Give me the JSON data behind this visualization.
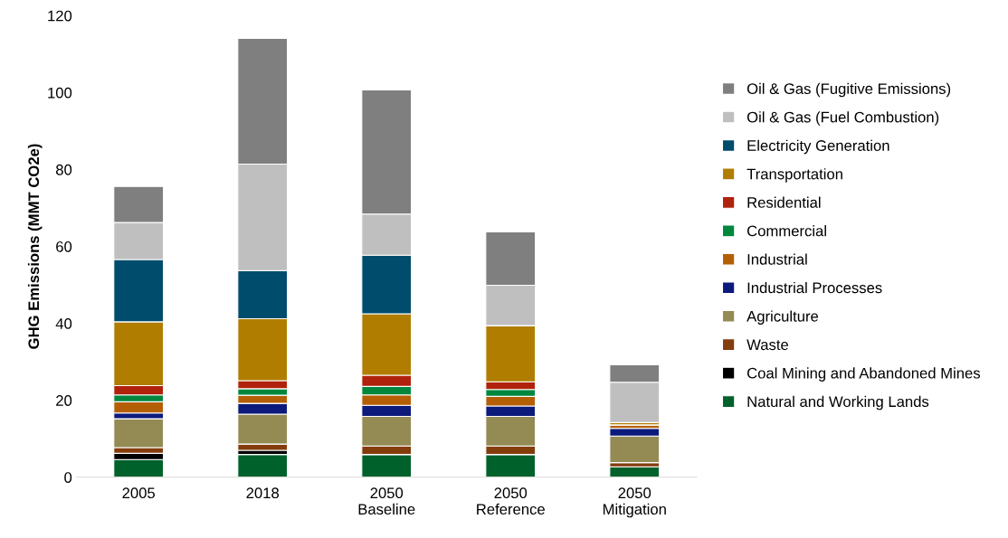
{
  "chart_data": {
    "type": "bar",
    "stacked": true,
    "ylabel": "GHG Emissions (MMT CO2e)",
    "categories": [
      "2005",
      "2018",
      "2050\nBaseline",
      "2050\nReference",
      "2050\nMitigation"
    ],
    "ylim": [
      0,
      120
    ],
    "yticks": [
      0,
      20,
      40,
      60,
      80,
      100,
      120
    ],
    "grid": false,
    "legend": "right",
    "series": [
      {
        "name": "Natural and Working Lands",
        "color": "#00612b",
        "values": [
          4.6,
          5.9,
          5.9,
          5.9,
          2.7
        ]
      },
      {
        "name": "Coal Mining and Abandoned Mines",
        "color": "#000000",
        "values": [
          1.6,
          1.1,
          0,
          0,
          0
        ]
      },
      {
        "name": "Waste",
        "color": "#843c0c",
        "values": [
          1.5,
          1.6,
          2.2,
          2.2,
          1.1
        ]
      },
      {
        "name": "Agriculture",
        "color": "#948a54",
        "values": [
          7.5,
          7.8,
          7.7,
          7.7,
          6.9
        ]
      },
      {
        "name": "Industrial Processes",
        "color": "#0c1a7c",
        "values": [
          1.5,
          2.8,
          2.9,
          2.7,
          2.0
        ]
      },
      {
        "name": "Industrial",
        "color": "#b45f06",
        "values": [
          2.9,
          2.1,
          2.7,
          2.5,
          0.9
        ]
      },
      {
        "name": "Commercial",
        "color": "#00873e",
        "values": [
          1.8,
          1.7,
          2.2,
          1.8,
          0
        ]
      },
      {
        "name": "Residential",
        "color": "#b0220b",
        "values": [
          2.4,
          2.1,
          2.9,
          2.0,
          null
        ]
      },
      {
        "name": "Transportation",
        "color": "#b07d00",
        "values": [
          16.6,
          16.1,
          16.0,
          14.6,
          0.6
        ]
      },
      {
        "name": "Electricity Generation",
        "color": "#004c6d",
        "values": [
          16.2,
          12.5,
          15.2,
          0,
          0
        ]
      },
      {
        "name": "Oil & Gas (Fuel Combustion)",
        "color": "#bfbfbf",
        "values": [
          9.6,
          27.7,
          10.7,
          10.5,
          10.5
        ]
      },
      {
        "name": "Oil & Gas (Fugitive Emissions)",
        "color": "#7f7f7f",
        "values": [
          9.4,
          32.7,
          32.3,
          13.9,
          4.5
        ]
      }
    ]
  }
}
